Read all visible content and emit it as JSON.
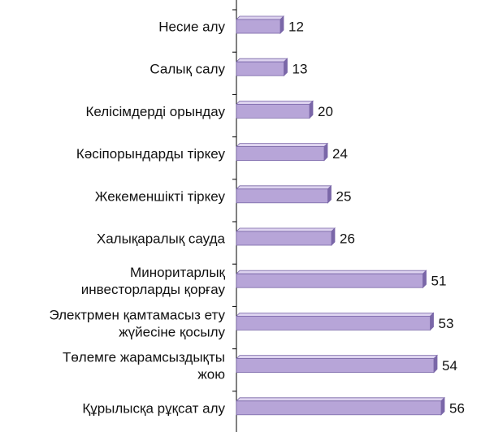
{
  "chart_data": {
    "type": "bar",
    "orientation": "horizontal",
    "categories": [
      [
        "Несие алу"
      ],
      [
        "Салық салу"
      ],
      [
        "Келісімдерді орындау"
      ],
      [
        "Кәсіпорындарды тіркеу"
      ],
      [
        "Жекеменшікті тіркеу"
      ],
      [
        "Халықаралық сауда"
      ],
      [
        "Миноритарлық",
        "инвесторларды қорғау"
      ],
      [
        "Электрмен қамтамасыз ету",
        "жүйесіне қосылу"
      ],
      [
        "Төлемге жарамсыздықты",
        "жою"
      ],
      [
        "Құрылысқа рұқсат алу"
      ]
    ],
    "values": [
      12,
      13,
      20,
      24,
      25,
      26,
      51,
      53,
      54,
      56
    ],
    "data_labels": [
      "12",
      "13",
      "20",
      "24",
      "25",
      "26",
      "51",
      "53",
      "54",
      "56"
    ],
    "xlim": [
      0,
      300
    ],
    "bar_color": "#b7a5d8",
    "bar_edge_color": "#7a67a8",
    "bar_top_color": "#ddd3ef",
    "axis_color": "#000000"
  }
}
